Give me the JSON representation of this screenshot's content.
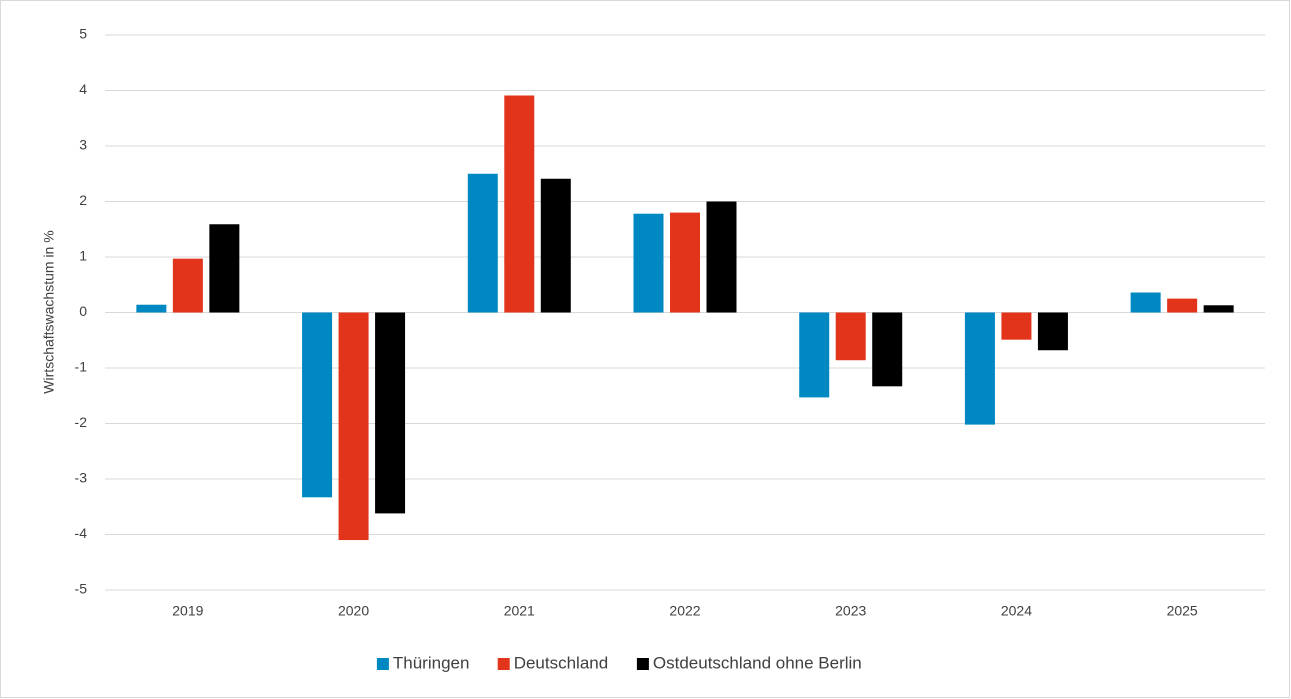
{
  "chart_data": {
    "type": "bar",
    "y_label": "Wirtschaftswachstum in %",
    "categories": [
      "2019",
      "2020",
      "2021",
      "2022",
      "2023",
      "2024",
      "2025"
    ],
    "series": [
      {
        "name": "Thüringen",
        "color": "#0088c2",
        "values": [
          0.14,
          -3.33,
          2.5,
          1.78,
          -1.53,
          -2.02,
          0.36
        ]
      },
      {
        "name": "Deutschland",
        "color": "#e2341a",
        "values": [
          0.97,
          -4.1,
          3.91,
          1.8,
          -0.86,
          -0.49,
          0.25
        ]
      },
      {
        "name": "Ostdeutschland ohne Berlin",
        "color": "#000000",
        "values": [
          1.59,
          -3.62,
          2.41,
          2.0,
          -1.33,
          -0.68,
          0.13
        ]
      }
    ],
    "ylim": [
      -5,
      5
    ],
    "yticks": [
      -5,
      -4,
      -3,
      -2,
      -1,
      0,
      1,
      2,
      3,
      4,
      5
    ],
    "grid": true,
    "legend": "bottom"
  }
}
